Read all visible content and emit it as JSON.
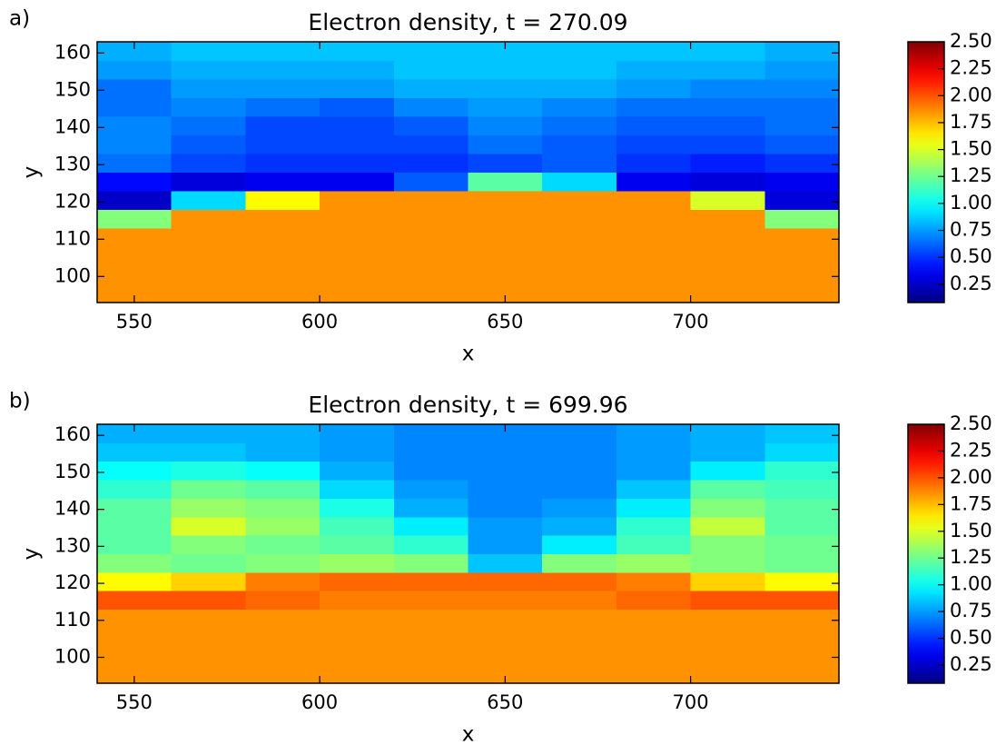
{
  "chart_data": [
    {
      "type": "heatmap",
      "panel_label": "a)",
      "title": "Electron density, t = 270.09",
      "xlabel": "x",
      "ylabel": "y",
      "xbins": [
        540,
        560,
        580,
        600,
        620,
        640,
        660,
        680,
        700,
        720,
        740
      ],
      "ybins": [
        93,
        98,
        103,
        108,
        113,
        118,
        123,
        128,
        133,
        138,
        143,
        148,
        153,
        158,
        163
      ],
      "z": [
        [
          1.85,
          1.85,
          1.85,
          1.85,
          1.85,
          1.85,
          1.85,
          1.85,
          1.85,
          1.85
        ],
        [
          1.85,
          1.85,
          1.85,
          1.85,
          1.85,
          1.85,
          1.85,
          1.85,
          1.85,
          1.85
        ],
        [
          1.85,
          1.85,
          1.85,
          1.85,
          1.85,
          1.85,
          1.85,
          1.85,
          1.85,
          1.85
        ],
        [
          1.85,
          1.85,
          1.85,
          1.85,
          1.85,
          1.85,
          1.85,
          1.85,
          1.85,
          1.85
        ],
        [
          1.3,
          1.85,
          1.85,
          1.85,
          1.85,
          1.85,
          1.85,
          1.85,
          1.85,
          1.3
        ],
        [
          0.25,
          0.9,
          1.6,
          1.85,
          1.85,
          1.85,
          1.85,
          1.85,
          1.5,
          0.3
        ],
        [
          0.4,
          0.3,
          0.35,
          0.35,
          0.6,
          1.2,
          0.9,
          0.35,
          0.3,
          0.35
        ],
        [
          0.65,
          0.55,
          0.5,
          0.5,
          0.5,
          0.55,
          0.6,
          0.5,
          0.45,
          0.5
        ],
        [
          0.7,
          0.6,
          0.55,
          0.55,
          0.55,
          0.65,
          0.6,
          0.55,
          0.55,
          0.6
        ],
        [
          0.7,
          0.65,
          0.55,
          0.55,
          0.6,
          0.7,
          0.65,
          0.6,
          0.6,
          0.65
        ],
        [
          0.65,
          0.7,
          0.65,
          0.6,
          0.7,
          0.75,
          0.7,
          0.65,
          0.65,
          0.65
        ],
        [
          0.65,
          0.75,
          0.75,
          0.75,
          0.8,
          0.8,
          0.8,
          0.75,
          0.7,
          0.7
        ],
        [
          0.75,
          0.8,
          0.8,
          0.8,
          0.85,
          0.85,
          0.85,
          0.8,
          0.8,
          0.75
        ],
        [
          0.8,
          0.85,
          0.85,
          0.85,
          0.85,
          0.85,
          0.85,
          0.85,
          0.85,
          0.8
        ]
      ],
      "xlim": [
        540,
        740
      ],
      "ylim": [
        93,
        163
      ],
      "xticks": [
        550,
        600,
        650,
        700
      ],
      "yticks": [
        100,
        110,
        120,
        130,
        140,
        150,
        160
      ],
      "colormap": "jet",
      "clim": [
        0.08,
        2.5
      ],
      "cticks": [
        0.25,
        {
          "value": 0.5,
          "label": "0.50"
        },
        0.75,
        {
          "value": 1,
          "label": "1.00"
        },
        1.25,
        {
          "value": 1.5,
          "label": "1.50"
        },
        1.75,
        {
          "value": 2,
          "label": "2.00"
        },
        2.25,
        {
          "value": 2.5,
          "label": "2.50"
        }
      ]
    },
    {
      "type": "heatmap",
      "panel_label": "b)",
      "title": "Electron density, t = 699.96",
      "xlabel": "x",
      "ylabel": "y",
      "xbins": [
        540,
        560,
        580,
        600,
        620,
        640,
        660,
        680,
        700,
        720,
        740
      ],
      "ybins": [
        93,
        98,
        103,
        108,
        113,
        118,
        123,
        128,
        133,
        138,
        143,
        148,
        153,
        158,
        163
      ],
      "z": [
        [
          1.85,
          1.85,
          1.85,
          1.85,
          1.85,
          1.85,
          1.85,
          1.85,
          1.85,
          1.85
        ],
        [
          1.85,
          1.85,
          1.85,
          1.85,
          1.85,
          1.85,
          1.85,
          1.85,
          1.85,
          1.85
        ],
        [
          1.85,
          1.85,
          1.85,
          1.85,
          1.85,
          1.85,
          1.85,
          1.85,
          1.85,
          1.85
        ],
        [
          1.85,
          1.85,
          1.85,
          1.85,
          1.85,
          1.85,
          1.85,
          1.85,
          1.85,
          1.85
        ],
        [
          2.0,
          2.0,
          1.95,
          1.9,
          1.9,
          1.9,
          1.9,
          1.95,
          2.0,
          2.0
        ],
        [
          1.6,
          1.7,
          1.9,
          1.95,
          1.95,
          1.95,
          1.95,
          1.9,
          1.7,
          1.6
        ],
        [
          1.3,
          1.25,
          1.3,
          1.35,
          1.3,
          0.85,
          1.3,
          1.35,
          1.3,
          1.25
        ],
        [
          1.2,
          1.3,
          1.25,
          1.2,
          1.1,
          0.75,
          0.95,
          1.15,
          1.3,
          1.25
        ],
        [
          1.2,
          1.5,
          1.35,
          1.15,
          0.95,
          0.75,
          0.8,
          1.1,
          1.45,
          1.2
        ],
        [
          1.2,
          1.35,
          1.3,
          1.05,
          0.8,
          0.7,
          0.75,
          0.95,
          1.3,
          1.2
        ],
        [
          1.1,
          1.25,
          1.2,
          0.9,
          0.75,
          0.7,
          0.7,
          0.85,
          1.2,
          1.15
        ],
        [
          1.0,
          1.05,
          1.0,
          0.8,
          0.7,
          0.7,
          0.7,
          0.75,
          0.95,
          1.1
        ],
        [
          0.85,
          0.85,
          0.8,
          0.75,
          0.7,
          0.7,
          0.7,
          0.75,
          0.8,
          0.9
        ],
        [
          0.8,
          0.8,
          0.8,
          0.75,
          0.7,
          0.7,
          0.7,
          0.75,
          0.8,
          0.85
        ]
      ],
      "xlim": [
        540,
        740
      ],
      "ylim": [
        93,
        163
      ],
      "xticks": [
        550,
        600,
        650,
        700
      ],
      "yticks": [
        100,
        110,
        120,
        130,
        140,
        150,
        160
      ],
      "colormap": "jet",
      "clim": [
        0.08,
        2.5
      ],
      "cticks": [
        0.25,
        {
          "value": 0.5,
          "label": "0.50"
        },
        0.75,
        {
          "value": 1,
          "label": "1.00"
        },
        1.25,
        {
          "value": 1.5,
          "label": "1.50"
        },
        1.75,
        {
          "value": 2,
          "label": "2.00"
        },
        2.25,
        {
          "value": 2.5,
          "label": "2.50"
        }
      ]
    }
  ]
}
